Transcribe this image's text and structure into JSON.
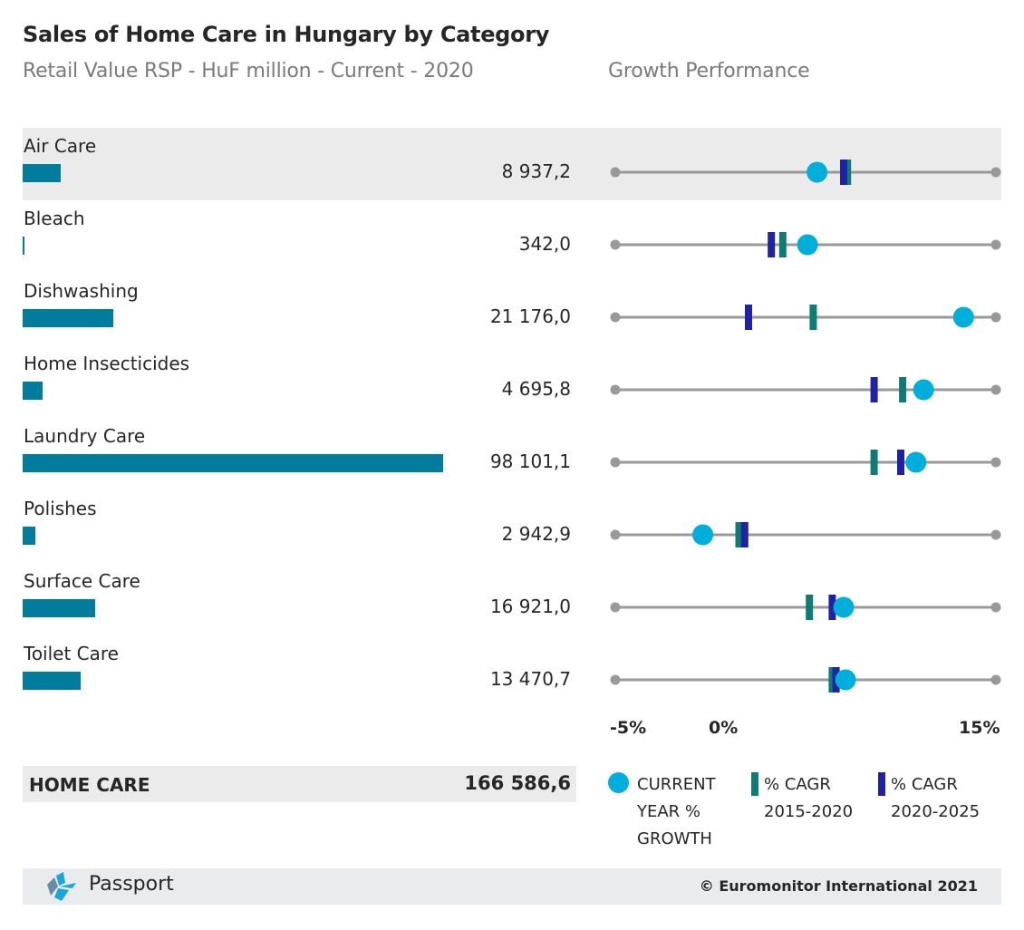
{
  "header": {
    "title": "Sales of Home Care in Hungary by Category",
    "subtitle": "Retail Value RSP - HuF million - Current - 2020",
    "growth_title": "Growth Performance"
  },
  "colors": {
    "bar": "#007d9c",
    "current_growth": "#00aedb",
    "cagr_2015_2020": "#0e7c72",
    "cagr_2020_2025": "#1f23a3",
    "axis_line": "#999999",
    "row_shade": "#ebebeb"
  },
  "chart_data": [
    {
      "type": "bar",
      "title": "Sales of Home Care in Hungary by Category",
      "subtitle": "Retail Value RSP - HuF million - Current - 2020",
      "orientation": "horizontal",
      "categories": [
        "Air Care",
        "Bleach",
        "Dishwashing",
        "Home Insecticides",
        "Laundry Care",
        "Polishes",
        "Surface Care",
        "Toilet Care"
      ],
      "values": [
        8937.2,
        342.0,
        21176.0,
        4695.8,
        98101.1,
        2942.9,
        16921.0,
        13470.7
      ],
      "value_labels": [
        "8 937,2",
        "342,0",
        "21 176,0",
        "4 695,8",
        "98 101,1",
        "2 942,9",
        "16 921,0",
        "13 470,7"
      ],
      "total": {
        "label": "HOME CARE",
        "value": 166586.6,
        "value_label": "166 586,6"
      }
    },
    {
      "type": "scatter",
      "title": "Growth Performance",
      "categories": [
        "Air Care",
        "Bleach",
        "Dishwashing",
        "Home Insecticides",
        "Laundry Care",
        "Polishes",
        "Surface Care",
        "Toilet Care"
      ],
      "xlim": [
        -5,
        15
      ],
      "unit": "%",
      "tick_labels": [
        "-5%",
        "0%",
        "15%"
      ],
      "tick_values": [
        -5,
        0,
        15
      ],
      "series": [
        {
          "name": "CURRENT YEAR % GROWTH",
          "marker": "circle",
          "values": [
            5.6,
            5.1,
            13.3,
            11.2,
            10.8,
            -0.4,
            7.0,
            7.1
          ]
        },
        {
          "name": "% CAGR 2015-2020",
          "marker": "bar",
          "values": [
            7.2,
            3.8,
            5.4,
            10.1,
            8.6,
            1.5,
            5.2,
            6.4
          ]
        },
        {
          "name": "% CAGR 2020-2025",
          "marker": "bar",
          "values": [
            7.0,
            3.2,
            2.0,
            8.6,
            10.0,
            1.8,
            6.4,
            6.6
          ]
        }
      ],
      "legend": {
        "placement": "bottom",
        "items": [
          {
            "label_lines": [
              "CURRENT",
              "YEAR %",
              "GROWTH"
            ]
          },
          {
            "label_lines": [
              "% CAGR",
              "2015-2020"
            ]
          },
          {
            "label_lines": [
              "% CAGR",
              "2020-2025"
            ]
          }
        ]
      }
    }
  ],
  "footer": {
    "brand": "Passport",
    "copyright": "© Euromonitor International 2021"
  }
}
